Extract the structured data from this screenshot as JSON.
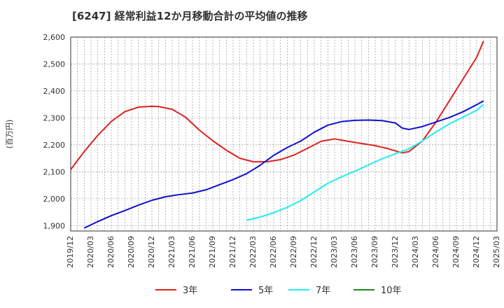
{
  "chart_data": {
    "type": "line",
    "title": "[6247]  経常利益12か月移動合計の平均値の推移",
    "ylabel": "(百万円)",
    "xlabel": "",
    "ylim": [
      1880,
      2600
    ],
    "yticks": [
      1900,
      2000,
      2100,
      2200,
      2300,
      2400,
      2500,
      2600
    ],
    "ytick_labels": [
      "1,900",
      "2,000",
      "2,100",
      "2,200",
      "2,300",
      "2,400",
      "2,500",
      "2,600"
    ],
    "x_start": "2019-12",
    "x_end": "2025-03",
    "xtick_labels": [
      "2019/12",
      "2020/03",
      "2020/06",
      "2020/09",
      "2020/12",
      "2021/03",
      "2021/06",
      "2021/09",
      "2021/12",
      "2022/03",
      "2022/06",
      "2022/09",
      "2022/12",
      "2023/03",
      "2023/06",
      "2023/09",
      "2023/12",
      "2024/03",
      "2024/06",
      "2024/09",
      "2024/12",
      "2025/03"
    ],
    "grid": true,
    "legend_position": "bottom",
    "series": [
      {
        "name": "3年",
        "color": "#dd2222",
        "points": [
          [
            "2019-12",
            2108
          ],
          [
            "2020-02",
            2175
          ],
          [
            "2020-04",
            2235
          ],
          [
            "2020-06",
            2287
          ],
          [
            "2020-08",
            2323
          ],
          [
            "2020-10",
            2340
          ],
          [
            "2020-12",
            2343
          ],
          [
            "2021-01",
            2342
          ],
          [
            "2021-03",
            2332
          ],
          [
            "2021-05",
            2302
          ],
          [
            "2021-07",
            2255
          ],
          [
            "2021-09",
            2215
          ],
          [
            "2021-11",
            2180
          ],
          [
            "2022-01",
            2150
          ],
          [
            "2022-03",
            2137
          ],
          [
            "2022-05",
            2137
          ],
          [
            "2022-07",
            2145
          ],
          [
            "2022-09",
            2162
          ],
          [
            "2022-11",
            2187
          ],
          [
            "2023-01",
            2213
          ],
          [
            "2023-03",
            2222
          ],
          [
            "2023-05",
            2213
          ],
          [
            "2023-07",
            2205
          ],
          [
            "2023-09",
            2197
          ],
          [
            "2023-11",
            2185
          ],
          [
            "2024-01",
            2170
          ],
          [
            "2024-02",
            2175
          ],
          [
            "2024-04",
            2215
          ],
          [
            "2024-06",
            2285
          ],
          [
            "2024-08",
            2365
          ],
          [
            "2024-10",
            2445
          ],
          [
            "2024-12",
            2525
          ],
          [
            "2025-01",
            2585
          ]
        ]
      },
      {
        "name": "5年",
        "color": "#1111cc",
        "points": [
          [
            "2020-02",
            1891
          ],
          [
            "2020-04",
            1915
          ],
          [
            "2020-06",
            1937
          ],
          [
            "2020-08",
            1956
          ],
          [
            "2020-10",
            1976
          ],
          [
            "2020-12",
            1994
          ],
          [
            "2021-02",
            2007
          ],
          [
            "2021-04",
            2015
          ],
          [
            "2021-06",
            2021
          ],
          [
            "2021-08",
            2033
          ],
          [
            "2021-10",
            2052
          ],
          [
            "2021-12",
            2071
          ],
          [
            "2022-02",
            2093
          ],
          [
            "2022-04",
            2124
          ],
          [
            "2022-06",
            2161
          ],
          [
            "2022-08",
            2190
          ],
          [
            "2022-10",
            2214
          ],
          [
            "2022-12",
            2247
          ],
          [
            "2023-02",
            2273
          ],
          [
            "2023-04",
            2286
          ],
          [
            "2023-06",
            2291
          ],
          [
            "2023-08",
            2292
          ],
          [
            "2023-10",
            2290
          ],
          [
            "2023-12",
            2281
          ],
          [
            "2024-01",
            2262
          ],
          [
            "2024-02",
            2257
          ],
          [
            "2024-04",
            2268
          ],
          [
            "2024-06",
            2285
          ],
          [
            "2024-08",
            2302
          ],
          [
            "2024-10",
            2323
          ],
          [
            "2024-12",
            2349
          ],
          [
            "2025-01",
            2363
          ]
        ]
      },
      {
        "name": "7年",
        "color": "#22eeee",
        "points": [
          [
            "2022-02",
            1920
          ],
          [
            "2022-04",
            1932
          ],
          [
            "2022-06",
            1948
          ],
          [
            "2022-08",
            1968
          ],
          [
            "2022-10",
            1993
          ],
          [
            "2022-12",
            2025
          ],
          [
            "2023-02",
            2057
          ],
          [
            "2023-04",
            2081
          ],
          [
            "2023-06",
            2102
          ],
          [
            "2023-08",
            2125
          ],
          [
            "2023-10",
            2148
          ],
          [
            "2023-12",
            2167
          ],
          [
            "2024-02",
            2185
          ],
          [
            "2024-04",
            2215
          ],
          [
            "2024-06",
            2248
          ],
          [
            "2024-08",
            2278
          ],
          [
            "2024-10",
            2303
          ],
          [
            "2024-12",
            2328
          ],
          [
            "2025-01",
            2350
          ]
        ]
      },
      {
        "name": "10年",
        "color": "#228822",
        "points": []
      }
    ]
  }
}
